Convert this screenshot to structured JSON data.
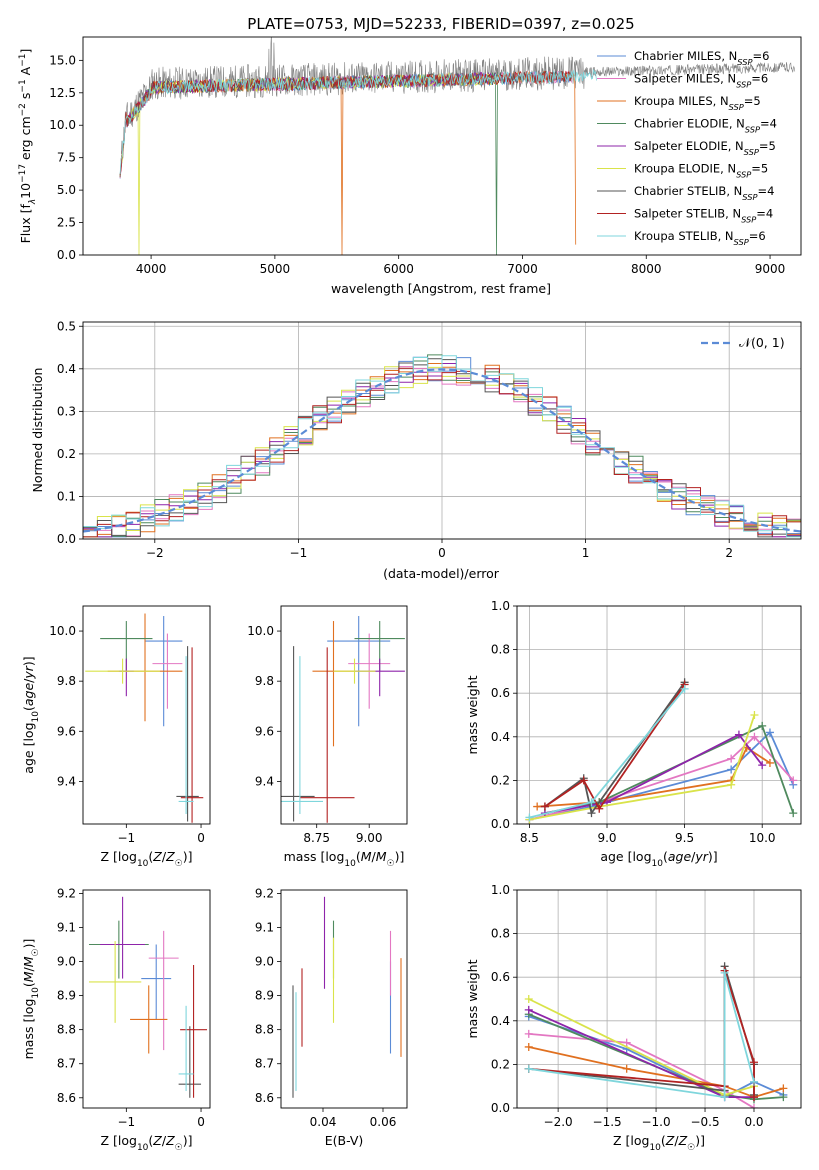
{
  "figure_title": "PLATE=0753, MJD=52233, FIBERID=0397, z=0.025",
  "colors": {
    "Chabrier MILES": "#5b8bd6",
    "Salpeter MILES": "#e377c2",
    "Kroupa MILES": "#e07020",
    "Chabrier ELODIE": "#4f8a5e",
    "Salpeter ELODIE": "#8e24aa",
    "Kroupa ELODIE": "#d9e34a",
    "Chabrier STELIB": "#555555",
    "Salpeter STELIB": "#b22222",
    "Kroupa STELIB": "#7fd6dc"
  },
  "chart_data": [
    {
      "id": "spectrum",
      "type": "line",
      "title": "PLATE=0753, MJD=52233, FIBERID=0397, z=0.025",
      "xlabel": "wavelength [Angstrom, rest frame]",
      "ylabel": "Flux [f_λ 10^-17 erg cm^-2 s^-1 A^-1]",
      "xlim": [
        3450,
        9250
      ],
      "ylim": [
        0,
        16.8
      ],
      "xticks": [
        4000,
        5000,
        6000,
        7000,
        8000,
        9000
      ],
      "yticks": [
        0.0,
        2.5,
        5.0,
        7.5,
        10.0,
        12.5,
        15.0
      ],
      "legend_position": "top-right",
      "legend": [
        "Chabrier MILES, N_SSP=6",
        "Salpeter MILES, N_SSP=6",
        "Kroupa MILES, N_SSP=5",
        "Chabrier ELODIE, N_SSP=4",
        "Salpeter ELODIE, N_SSP=5",
        "Kroupa ELODIE, N_SSP=5",
        "Chabrier STELIB, N_SSP=4",
        "Salpeter STELIB, N_SSP=4",
        "Kroupa STELIB, N_SSP=6"
      ],
      "data_series": {
        "name": "data",
        "x_range": [
          3750,
          9200
        ],
        "level": 13.5
      },
      "model_series": [
        {
          "name": "Chabrier MILES",
          "x_range": [
            3750,
            7400
          ]
        },
        {
          "name": "Salpeter MILES",
          "x_range": [
            3750,
            7400
          ]
        },
        {
          "name": "Kroupa MILES",
          "x_range": [
            3750,
            7430
          ],
          "drops": [
            [
              5545,
              0
            ],
            [
              7430,
              0.8
            ]
          ]
        },
        {
          "name": "Chabrier ELODIE",
          "x_range": [
            3750,
            6800
          ],
          "drops": [
            [
              6790,
              0
            ]
          ]
        },
        {
          "name": "Salpeter ELODIE",
          "x_range": [
            3750,
            6800
          ]
        },
        {
          "name": "Kroupa ELODIE",
          "x_range": [
            3750,
            6800
          ],
          "drops": [
            [
              3900,
              0
            ]
          ]
        },
        {
          "name": "Chabrier STELIB",
          "x_range": [
            3750,
            7400
          ]
        },
        {
          "name": "Salpeter STELIB",
          "x_range": [
            3750,
            7400
          ]
        },
        {
          "name": "Kroupa STELIB",
          "x_range": [
            3750,
            7600
          ]
        }
      ]
    },
    {
      "id": "residuals",
      "type": "step",
      "xlabel": "(data-model)/error",
      "ylabel": "Normed distribution",
      "xlim": [
        -2.5,
        2.5
      ],
      "ylim": [
        0,
        0.51
      ],
      "xticks": [
        -2,
        -1,
        0,
        1,
        2
      ],
      "yticks": [
        0.0,
        0.1,
        0.2,
        0.3,
        0.4,
        0.5
      ],
      "grid": true,
      "legend_position": "top-right",
      "legend": [
        "𝒩(0, 1)"
      ],
      "bin_width": 0.1,
      "reference_curve": "normal(0,1)"
    },
    {
      "id": "age_vs_Z",
      "type": "errorbar",
      "xlabel": "Z [log10(Z/Z☉)]",
      "ylabel": "age [log10(age/yr)]",
      "xlim": [
        -1.58,
        0.12
      ],
      "ylim": [
        9.23,
        10.1
      ],
      "xticks": [
        -1,
        0
      ],
      "yticks": [
        9.4,
        9.6,
        9.8,
        10.0
      ],
      "points": [
        {
          "name": "Chabrier MILES",
          "x": -0.5,
          "y": 9.96,
          "xerr": 0.25,
          "yerr": [
            0.34,
            0.1
          ]
        },
        {
          "name": "Salpeter MILES",
          "x": -0.45,
          "y": 9.87,
          "xerr": 0.2,
          "yerr": [
            0.18,
            0.12
          ]
        },
        {
          "name": "Kroupa MILES",
          "x": -0.75,
          "y": 9.84,
          "xerr": 0.5,
          "yerr": [
            0.2,
            0.23
          ]
        },
        {
          "name": "Chabrier ELODIE",
          "x": -1.0,
          "y": 9.97,
          "xerr": 0.35,
          "yerr": [
            0.13,
            0.07
          ]
        },
        {
          "name": "Salpeter ELODIE",
          "x": -1.0,
          "y": 9.84,
          "xerr": 0.1,
          "yerr": [
            0.1,
            0.05
          ]
        },
        {
          "name": "Kroupa ELODIE",
          "x": -1.05,
          "y": 9.84,
          "xerr": 0.5,
          "yerr": [
            0.05,
            0.05
          ]
        },
        {
          "name": "Chabrier STELIB",
          "x": -0.18,
          "y": 9.34,
          "xerr": 0.15,
          "yerr": [
            0.1,
            0.6
          ]
        },
        {
          "name": "Salpeter STELIB",
          "x": -0.12,
          "y": 9.335,
          "xerr": 0.15,
          "yerr": [
            0.1,
            0.6
          ]
        },
        {
          "name": "Kroupa STELIB",
          "x": -0.2,
          "y": 9.32,
          "xerr": 0.1,
          "yerr": [
            0.05,
            0.58
          ]
        }
      ]
    },
    {
      "id": "age_vs_mass",
      "type": "errorbar",
      "xlabel": "mass [log10(M/M☉)]",
      "ylabel": "",
      "xlim": [
        8.58,
        9.18
      ],
      "ylim": [
        9.23,
        10.1
      ],
      "xticks": [
        8.75,
        9.0
      ],
      "yticks": [
        9.4,
        9.6,
        9.8,
        10.0
      ],
      "points": [
        {
          "name": "Chabrier MILES",
          "x": 8.95,
          "y": 9.96,
          "xerr": 0.15,
          "yerr": [
            0.34,
            0.1
          ]
        },
        {
          "name": "Salpeter MILES",
          "x": 9.0,
          "y": 9.87,
          "xerr": 0.1,
          "yerr": [
            0.18,
            0.12
          ]
        },
        {
          "name": "Kroupa MILES",
          "x": 8.83,
          "y": 9.84,
          "xerr": 0.1,
          "yerr": [
            0.3,
            0.2
          ]
        },
        {
          "name": "Chabrier ELODIE",
          "x": 9.05,
          "y": 9.97,
          "xerr": 0.12,
          "yerr": [
            0.13,
            0.07
          ]
        },
        {
          "name": "Salpeter ELODIE",
          "x": 9.05,
          "y": 9.84,
          "xerr": 0.12,
          "yerr": [
            0.1,
            0.05
          ]
        },
        {
          "name": "Kroupa ELODIE",
          "x": 8.93,
          "y": 9.84,
          "xerr": 0.1,
          "yerr": [
            0.05,
            0.05
          ]
        },
        {
          "name": "Chabrier STELIB",
          "x": 8.64,
          "y": 9.34,
          "xerr": 0.1,
          "yerr": [
            0.1,
            0.6
          ]
        },
        {
          "name": "Salpeter STELIB",
          "x": 8.8,
          "y": 9.335,
          "xerr": 0.13,
          "yerr": [
            0.1,
            0.6
          ]
        },
        {
          "name": "Kroupa STELIB",
          "x": 8.67,
          "y": 9.32,
          "xerr": 0.11,
          "yerr": [
            0.05,
            0.58
          ]
        }
      ]
    },
    {
      "id": "weight_vs_age",
      "type": "line",
      "xlabel": "age [log10(age/yr)]",
      "ylabel": "mass weight",
      "xlim": [
        8.42,
        10.25
      ],
      "ylim": [
        0.0,
        1.0
      ],
      "xticks": [
        8.5,
        9.0,
        9.5,
        10.0
      ],
      "yticks": [
        0.0,
        0.2,
        0.4,
        0.6,
        0.8,
        1.0
      ],
      "grid": true,
      "series": [
        {
          "name": "Chabrier MILES",
          "x": [
            8.5,
            8.9,
            9.0,
            9.8,
            10.05,
            10.2
          ],
          "y": [
            0.02,
            0.08,
            0.1,
            0.25,
            0.42,
            0.18
          ]
        },
        {
          "name": "Salpeter MILES",
          "x": [
            8.5,
            8.95,
            9.8,
            9.95,
            10.2
          ],
          "y": [
            0.02,
            0.1,
            0.3,
            0.4,
            0.2
          ]
        },
        {
          "name": "Kroupa MILES",
          "x": [
            8.55,
            8.95,
            9.8,
            9.9,
            10.05
          ],
          "y": [
            0.08,
            0.1,
            0.2,
            0.35,
            0.28
          ]
        },
        {
          "name": "Chabrier ELODIE",
          "x": [
            8.6,
            8.95,
            10.0,
            10.2
          ],
          "y": [
            0.05,
            0.1,
            0.45,
            0.05
          ]
        },
        {
          "name": "Salpeter ELODIE",
          "x": [
            8.6,
            9.0,
            9.85,
            10.0
          ],
          "y": [
            0.05,
            0.1,
            0.41,
            0.27
          ]
        },
        {
          "name": "Kroupa ELODIE",
          "x": [
            8.5,
            8.95,
            9.8,
            9.95
          ],
          "y": [
            0.02,
            0.08,
            0.18,
            0.5
          ]
        },
        {
          "name": "Chabrier STELIB",
          "x": [
            8.6,
            8.85,
            8.9,
            9.5
          ],
          "y": [
            0.08,
            0.21,
            0.05,
            0.65
          ]
        },
        {
          "name": "Salpeter STELIB",
          "x": [
            8.6,
            8.85,
            8.95,
            9.5
          ],
          "y": [
            0.08,
            0.2,
            0.07,
            0.64
          ]
        },
        {
          "name": "Kroupa STELIB",
          "x": [
            8.5,
            8.9,
            9.5
          ],
          "y": [
            0.03,
            0.1,
            0.62
          ]
        }
      ]
    },
    {
      "id": "mass_vs_Z",
      "type": "errorbar",
      "xlabel": "Z [log10(Z/Z☉)]",
      "ylabel": "mass [log10(M/M☉)]",
      "xlim": [
        -1.58,
        0.12
      ],
      "ylim": [
        8.57,
        9.21
      ],
      "xticks": [
        -1,
        0
      ],
      "yticks": [
        8.6,
        8.7,
        8.8,
        8.9,
        9.0,
        9.1,
        9.2
      ],
      "points": [
        {
          "name": "Chabrier MILES",
          "x": -0.6,
          "y": 8.95,
          "xerr": 0.2,
          "yerr": [
            0.12,
            0.1
          ]
        },
        {
          "name": "Salpeter MILES",
          "x": -0.5,
          "y": 9.01,
          "xerr": 0.2,
          "yerr": [
            0.27,
            0.08
          ]
        },
        {
          "name": "Kroupa MILES",
          "x": -0.7,
          "y": 8.83,
          "xerr": 0.25,
          "yerr": [
            0.1,
            0.1
          ]
        },
        {
          "name": "Chabrier ELODIE",
          "x": -1.1,
          "y": 9.05,
          "xerr": 0.4,
          "yerr": [
            0.1,
            0.07
          ]
        },
        {
          "name": "Salpeter ELODIE",
          "x": -1.05,
          "y": 9.05,
          "xerr": 0.3,
          "yerr": [
            0.1,
            0.14
          ]
        },
        {
          "name": "Kroupa ELODIE",
          "x": -1.15,
          "y": 8.94,
          "xerr": 0.35,
          "yerr": [
            0.12,
            0.12
          ]
        },
        {
          "name": "Chabrier STELIB",
          "x": -0.15,
          "y": 8.64,
          "xerr": 0.15,
          "yerr": [
            0.04,
            0.17
          ]
        },
        {
          "name": "Salpeter STELIB",
          "x": -0.1,
          "y": 8.8,
          "xerr": 0.18,
          "yerr": [
            0.2,
            0.19
          ]
        },
        {
          "name": "Kroupa STELIB",
          "x": -0.2,
          "y": 8.67,
          "xerr": 0.1,
          "yerr": [
            0.05,
            0.2
          ]
        }
      ]
    },
    {
      "id": "mass_vs_EBV",
      "type": "errorbar",
      "xlabel": "E(B-V)",
      "ylabel": "",
      "xlim": [
        0.026,
        0.068
      ],
      "ylim": [
        8.57,
        9.21
      ],
      "xticks": [
        0.04,
        0.06
      ],
      "yticks": [
        8.6,
        8.7,
        8.8,
        8.9,
        9.0,
        9.1,
        9.2
      ],
      "points": [
        {
          "name": "Chabrier MILES",
          "x": 0.0625,
          "y": 8.9,
          "yerr": [
            0.17,
            0.1
          ]
        },
        {
          "name": "Salpeter MILES",
          "x": 0.0625,
          "y": 9.0,
          "yerr": [
            0.1,
            0.09
          ]
        },
        {
          "name": "Kroupa MILES",
          "x": 0.066,
          "y": 8.88,
          "yerr": [
            0.16,
            0.13
          ]
        },
        {
          "name": "Chabrier ELODIE",
          "x": 0.0435,
          "y": 9.05,
          "yerr": [
            0.1,
            0.07
          ]
        },
        {
          "name": "Salpeter ELODIE",
          "x": 0.0405,
          "y": 9.05,
          "yerr": [
            0.13,
            0.14
          ]
        },
        {
          "name": "Kroupa ELODIE",
          "x": 0.0435,
          "y": 8.95,
          "yerr": [
            0.13,
            0.12
          ]
        },
        {
          "name": "Chabrier STELIB",
          "x": 0.03,
          "y": 8.77,
          "yerr": [
            0.17,
            0.16
          ]
        },
        {
          "name": "Salpeter STELIB",
          "x": 0.033,
          "y": 8.86,
          "yerr": [
            0.11,
            0.12
          ]
        },
        {
          "name": "Kroupa STELIB",
          "x": 0.031,
          "y": 8.77,
          "yerr": [
            0.15,
            0.14
          ]
        }
      ]
    },
    {
      "id": "weight_vs_Z",
      "type": "line",
      "xlabel": "Z [log10(Z/Z☉)]",
      "ylabel": "mass weight",
      "xlim": [
        -2.42,
        0.48
      ],
      "ylim": [
        0.0,
        1.0
      ],
      "xticks": [
        -2.0,
        -1.5,
        -1.0,
        -0.5,
        0.0
      ],
      "yticks": [
        0.0,
        0.2,
        0.4,
        0.6,
        0.8,
        1.0
      ],
      "grid": true,
      "series": [
        {
          "name": "Chabrier MILES",
          "x": [
            -2.3,
            -1.3,
            -0.3,
            0.0,
            0.3
          ],
          "y": [
            0.42,
            0.27,
            0.05,
            0.12,
            0.06
          ]
        },
        {
          "name": "Salpeter MILES",
          "x": [
            -2.3,
            -1.3,
            -0.3,
            0.0
          ],
          "y": [
            0.34,
            0.3,
            0.08,
            0.0
          ]
        },
        {
          "name": "Kroupa MILES",
          "x": [
            -2.3,
            -1.3,
            -0.3,
            0.0,
            0.3
          ],
          "y": [
            0.28,
            0.18,
            0.1,
            0.05,
            0.09
          ]
        },
        {
          "name": "Chabrier ELODIE",
          "x": [
            -2.3,
            -0.3,
            0.0,
            0.3
          ],
          "y": [
            0.43,
            0.06,
            0.04,
            0.05
          ]
        },
        {
          "name": "Salpeter ELODIE",
          "x": [
            -2.3,
            -0.3,
            0.0
          ],
          "y": [
            0.45,
            0.05,
            0.05
          ]
        },
        {
          "name": "Kroupa ELODIE",
          "x": [
            -2.3,
            -0.3,
            0.0
          ],
          "y": [
            0.5,
            0.06,
            0.1
          ]
        },
        {
          "name": "Chabrier STELIB",
          "x": [
            -2.3,
            -0.3,
            -0.3,
            0.0,
            0.0
          ],
          "y": [
            0.18,
            0.08,
            0.65,
            0.2,
            0.06
          ]
        },
        {
          "name": "Salpeter STELIB",
          "x": [
            -2.3,
            -0.3,
            -0.3,
            0.0,
            0.0
          ],
          "y": [
            0.18,
            0.1,
            0.63,
            0.21,
            0.05
          ]
        },
        {
          "name": "Kroupa STELIB",
          "x": [
            -2.3,
            -0.3,
            -0.3,
            0.0
          ],
          "y": [
            0.18,
            0.05,
            0.62,
            0.12
          ]
        }
      ]
    }
  ]
}
